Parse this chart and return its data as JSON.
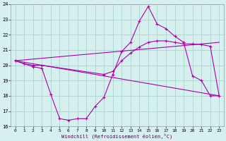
{
  "xlabel": "Windchill (Refroidissement éolien,°C)",
  "background_color": "#d6f0f0",
  "grid_color": "#b0d8d0",
  "line_color": "#aa00aa",
  "xlim": [
    -0.5,
    23.5
  ],
  "ylim": [
    16,
    24
  ],
  "yticks": [
    16,
    17,
    18,
    19,
    20,
    21,
    22,
    23,
    24
  ],
  "xticks": [
    0,
    1,
    2,
    3,
    4,
    5,
    6,
    7,
    8,
    9,
    10,
    11,
    12,
    13,
    14,
    15,
    16,
    17,
    18,
    19,
    20,
    21,
    22,
    23
  ],
  "series1_x": [
    0,
    1,
    2,
    3,
    4,
    5,
    6,
    7,
    8,
    9,
    10,
    11,
    12,
    13,
    14,
    15,
    16,
    17,
    18,
    19,
    20,
    21,
    22,
    23
  ],
  "series1_y": [
    20.3,
    20.1,
    19.9,
    19.8,
    18.1,
    16.5,
    16.4,
    16.5,
    16.5,
    17.3,
    17.9,
    19.4,
    20.9,
    21.5,
    22.9,
    23.85,
    22.7,
    22.4,
    21.9,
    21.5,
    19.3,
    19.0,
    18.0,
    18.0
  ],
  "series2_x": [
    0,
    1,
    2,
    3,
    10,
    11,
    12,
    13,
    14,
    15,
    16,
    17,
    18,
    19,
    20,
    21,
    22,
    23
  ],
  "series2_y": [
    20.3,
    20.1,
    20.0,
    20.0,
    19.4,
    19.6,
    20.3,
    20.8,
    21.2,
    21.5,
    21.6,
    21.6,
    21.5,
    21.4,
    21.4,
    21.35,
    21.25,
    18.0
  ],
  "series3_x": [
    0,
    23
  ],
  "series3_y": [
    20.3,
    18.0
  ],
  "series4_x": [
    0,
    23
  ],
  "series4_y": [
    20.3,
    21.5
  ]
}
